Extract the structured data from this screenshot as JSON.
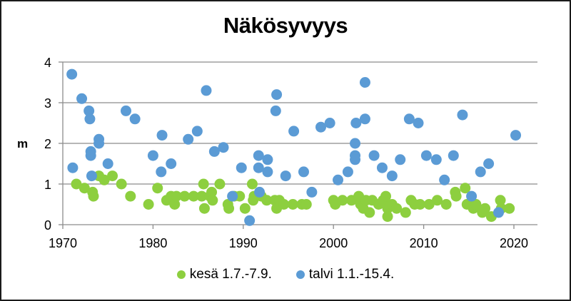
{
  "chart_data": {
    "type": "scatter",
    "title": "Näkösyvyys",
    "xlabel": "",
    "ylabel": "m",
    "xlim": [
      1970,
      2022.5
    ],
    "ylim": [
      0,
      4
    ],
    "xticks": [
      1970,
      1980,
      1990,
      2000,
      2010,
      2020
    ],
    "yticks": [
      0,
      1,
      2,
      3,
      4
    ],
    "grid": {
      "horizontal": true,
      "vertical": false
    },
    "legend_position": "bottom",
    "series": [
      {
        "name": "kesä 1.7.-7.9.",
        "color": "#8dcf3f",
        "points": [
          [
            1971.5,
            1.0
          ],
          [
            1972.4,
            0.9
          ],
          [
            1973.3,
            0.8
          ],
          [
            1973.4,
            0.7
          ],
          [
            1974.0,
            1.2
          ],
          [
            1974.6,
            1.1
          ],
          [
            1975.5,
            1.2
          ],
          [
            1976.5,
            1.0
          ],
          [
            1977.5,
            0.7
          ],
          [
            1979.5,
            0.5
          ],
          [
            1980.5,
            0.9
          ],
          [
            1981.5,
            0.6
          ],
          [
            1982.0,
            0.7
          ],
          [
            1982.4,
            0.5
          ],
          [
            1982.6,
            0.7
          ],
          [
            1983.5,
            0.7
          ],
          [
            1984.5,
            0.7
          ],
          [
            1985.4,
            0.7
          ],
          [
            1985.6,
            1.0
          ],
          [
            1985.7,
            0.4
          ],
          [
            1986.3,
            0.7
          ],
          [
            1986.5,
            0.8
          ],
          [
            1986.6,
            0.6
          ],
          [
            1987.4,
            1.0
          ],
          [
            1988.3,
            0.5
          ],
          [
            1988.4,
            0.4
          ],
          [
            1989.0,
            0.7
          ],
          [
            1989.6,
            0.7
          ],
          [
            1990.2,
            0.4
          ],
          [
            1991.0,
            1.0
          ],
          [
            1991.1,
            0.6
          ],
          [
            1991.2,
            0.7
          ],
          [
            1992.0,
            0.7
          ],
          [
            1992.6,
            0.6
          ],
          [
            1993.5,
            0.6
          ],
          [
            1993.7,
            0.4
          ],
          [
            1994.0,
            0.6
          ],
          [
            1994.5,
            0.5
          ],
          [
            1995.5,
            0.5
          ],
          [
            1996.5,
            0.5
          ],
          [
            1997.0,
            0.5
          ],
          [
            2000.0,
            0.6
          ],
          [
            2000.2,
            0.5
          ],
          [
            2001.0,
            0.6
          ],
          [
            2002.0,
            0.6
          ],
          [
            2002.8,
            0.7
          ],
          [
            2003.0,
            0.5
          ],
          [
            2003.3,
            0.4
          ],
          [
            2003.6,
            0.6
          ],
          [
            2004.0,
            0.3
          ],
          [
            2004.3,
            0.6
          ],
          [
            2005.0,
            0.5
          ],
          [
            2005.5,
            0.6
          ],
          [
            2005.8,
            0.7
          ],
          [
            2006.0,
            0.4
          ],
          [
            2006.0,
            0.2
          ],
          [
            2006.5,
            0.5
          ],
          [
            2007.0,
            0.4
          ],
          [
            2008.0,
            0.3
          ],
          [
            2008.6,
            0.6
          ],
          [
            2009.0,
            0.5
          ],
          [
            2009.6,
            0.5
          ],
          [
            2010.6,
            0.5
          ],
          [
            2011.5,
            0.6
          ],
          [
            2012.5,
            0.5
          ],
          [
            2013.5,
            0.8
          ],
          [
            2013.6,
            0.7
          ],
          [
            2014.6,
            0.9
          ],
          [
            2014.8,
            0.5
          ],
          [
            2015.5,
            0.4
          ],
          [
            2015.8,
            0.5
          ],
          [
            2016.5,
            0.3
          ],
          [
            2016.8,
            0.4
          ],
          [
            2017.5,
            0.2
          ],
          [
            2018.5,
            0.6
          ],
          [
            2018.6,
            0.4
          ],
          [
            2019.5,
            0.4
          ]
        ]
      },
      {
        "name": "talvi 1.1.-15.4.",
        "color": "#5b9bd5",
        "points": [
          [
            1971.0,
            3.7
          ],
          [
            1971.1,
            1.4
          ],
          [
            1972.1,
            3.1
          ],
          [
            1972.9,
            2.8
          ],
          [
            1973.0,
            2.6
          ],
          [
            1973.1,
            1.8
          ],
          [
            1973.1,
            1.7
          ],
          [
            1973.2,
            1.2
          ],
          [
            1974.0,
            2.1
          ],
          [
            1974.0,
            2.0
          ],
          [
            1975.0,
            1.5
          ],
          [
            1977.0,
            2.8
          ],
          [
            1978.0,
            2.6
          ],
          [
            1980.0,
            1.7
          ],
          [
            1981.0,
            2.2
          ],
          [
            1980.9,
            1.3
          ],
          [
            1982.0,
            1.5
          ],
          [
            1983.9,
            2.1
          ],
          [
            1984.9,
            2.3
          ],
          [
            1985.9,
            3.3
          ],
          [
            1986.8,
            1.8
          ],
          [
            1987.8,
            1.9
          ],
          [
            1988.8,
            0.7
          ],
          [
            1989.8,
            1.4
          ],
          [
            1990.7,
            0.1
          ],
          [
            1991.7,
            1.7
          ],
          [
            1991.7,
            1.4
          ],
          [
            1991.8,
            0.8
          ],
          [
            1992.7,
            1.6
          ],
          [
            1992.7,
            1.3
          ],
          [
            1993.7,
            3.2
          ],
          [
            1993.6,
            2.8
          ],
          [
            1994.7,
            1.2
          ],
          [
            1995.6,
            2.3
          ],
          [
            1996.7,
            1.3
          ],
          [
            1997.6,
            0.8
          ],
          [
            1998.6,
            2.4
          ],
          [
            1999.6,
            2.5
          ],
          [
            2000.5,
            1.1
          ],
          [
            2001.6,
            1.3
          ],
          [
            2002.4,
            2.0
          ],
          [
            2002.4,
            1.7
          ],
          [
            2002.4,
            1.6
          ],
          [
            2002.5,
            2.5
          ],
          [
            2003.5,
            3.5
          ],
          [
            2003.5,
            2.6
          ],
          [
            2004.5,
            1.7
          ],
          [
            2005.4,
            1.4
          ],
          [
            2006.5,
            1.2
          ],
          [
            2007.4,
            1.6
          ],
          [
            2008.4,
            2.6
          ],
          [
            2009.4,
            2.5
          ],
          [
            2010.3,
            1.7
          ],
          [
            2011.4,
            1.6
          ],
          [
            2012.3,
            1.1
          ],
          [
            2013.3,
            1.7
          ],
          [
            2014.3,
            2.7
          ],
          [
            2015.3,
            0.7
          ],
          [
            2016.3,
            1.3
          ],
          [
            2017.2,
            1.5
          ],
          [
            2018.3,
            0.3
          ],
          [
            2020.2,
            2.2
          ]
        ]
      }
    ]
  },
  "legend": {
    "items": [
      {
        "label": "kesä 1.7.-7.9.",
        "color": "#8dcf3f"
      },
      {
        "label": "talvi 1.1.-15.4.",
        "color": "#5b9bd5"
      }
    ]
  }
}
